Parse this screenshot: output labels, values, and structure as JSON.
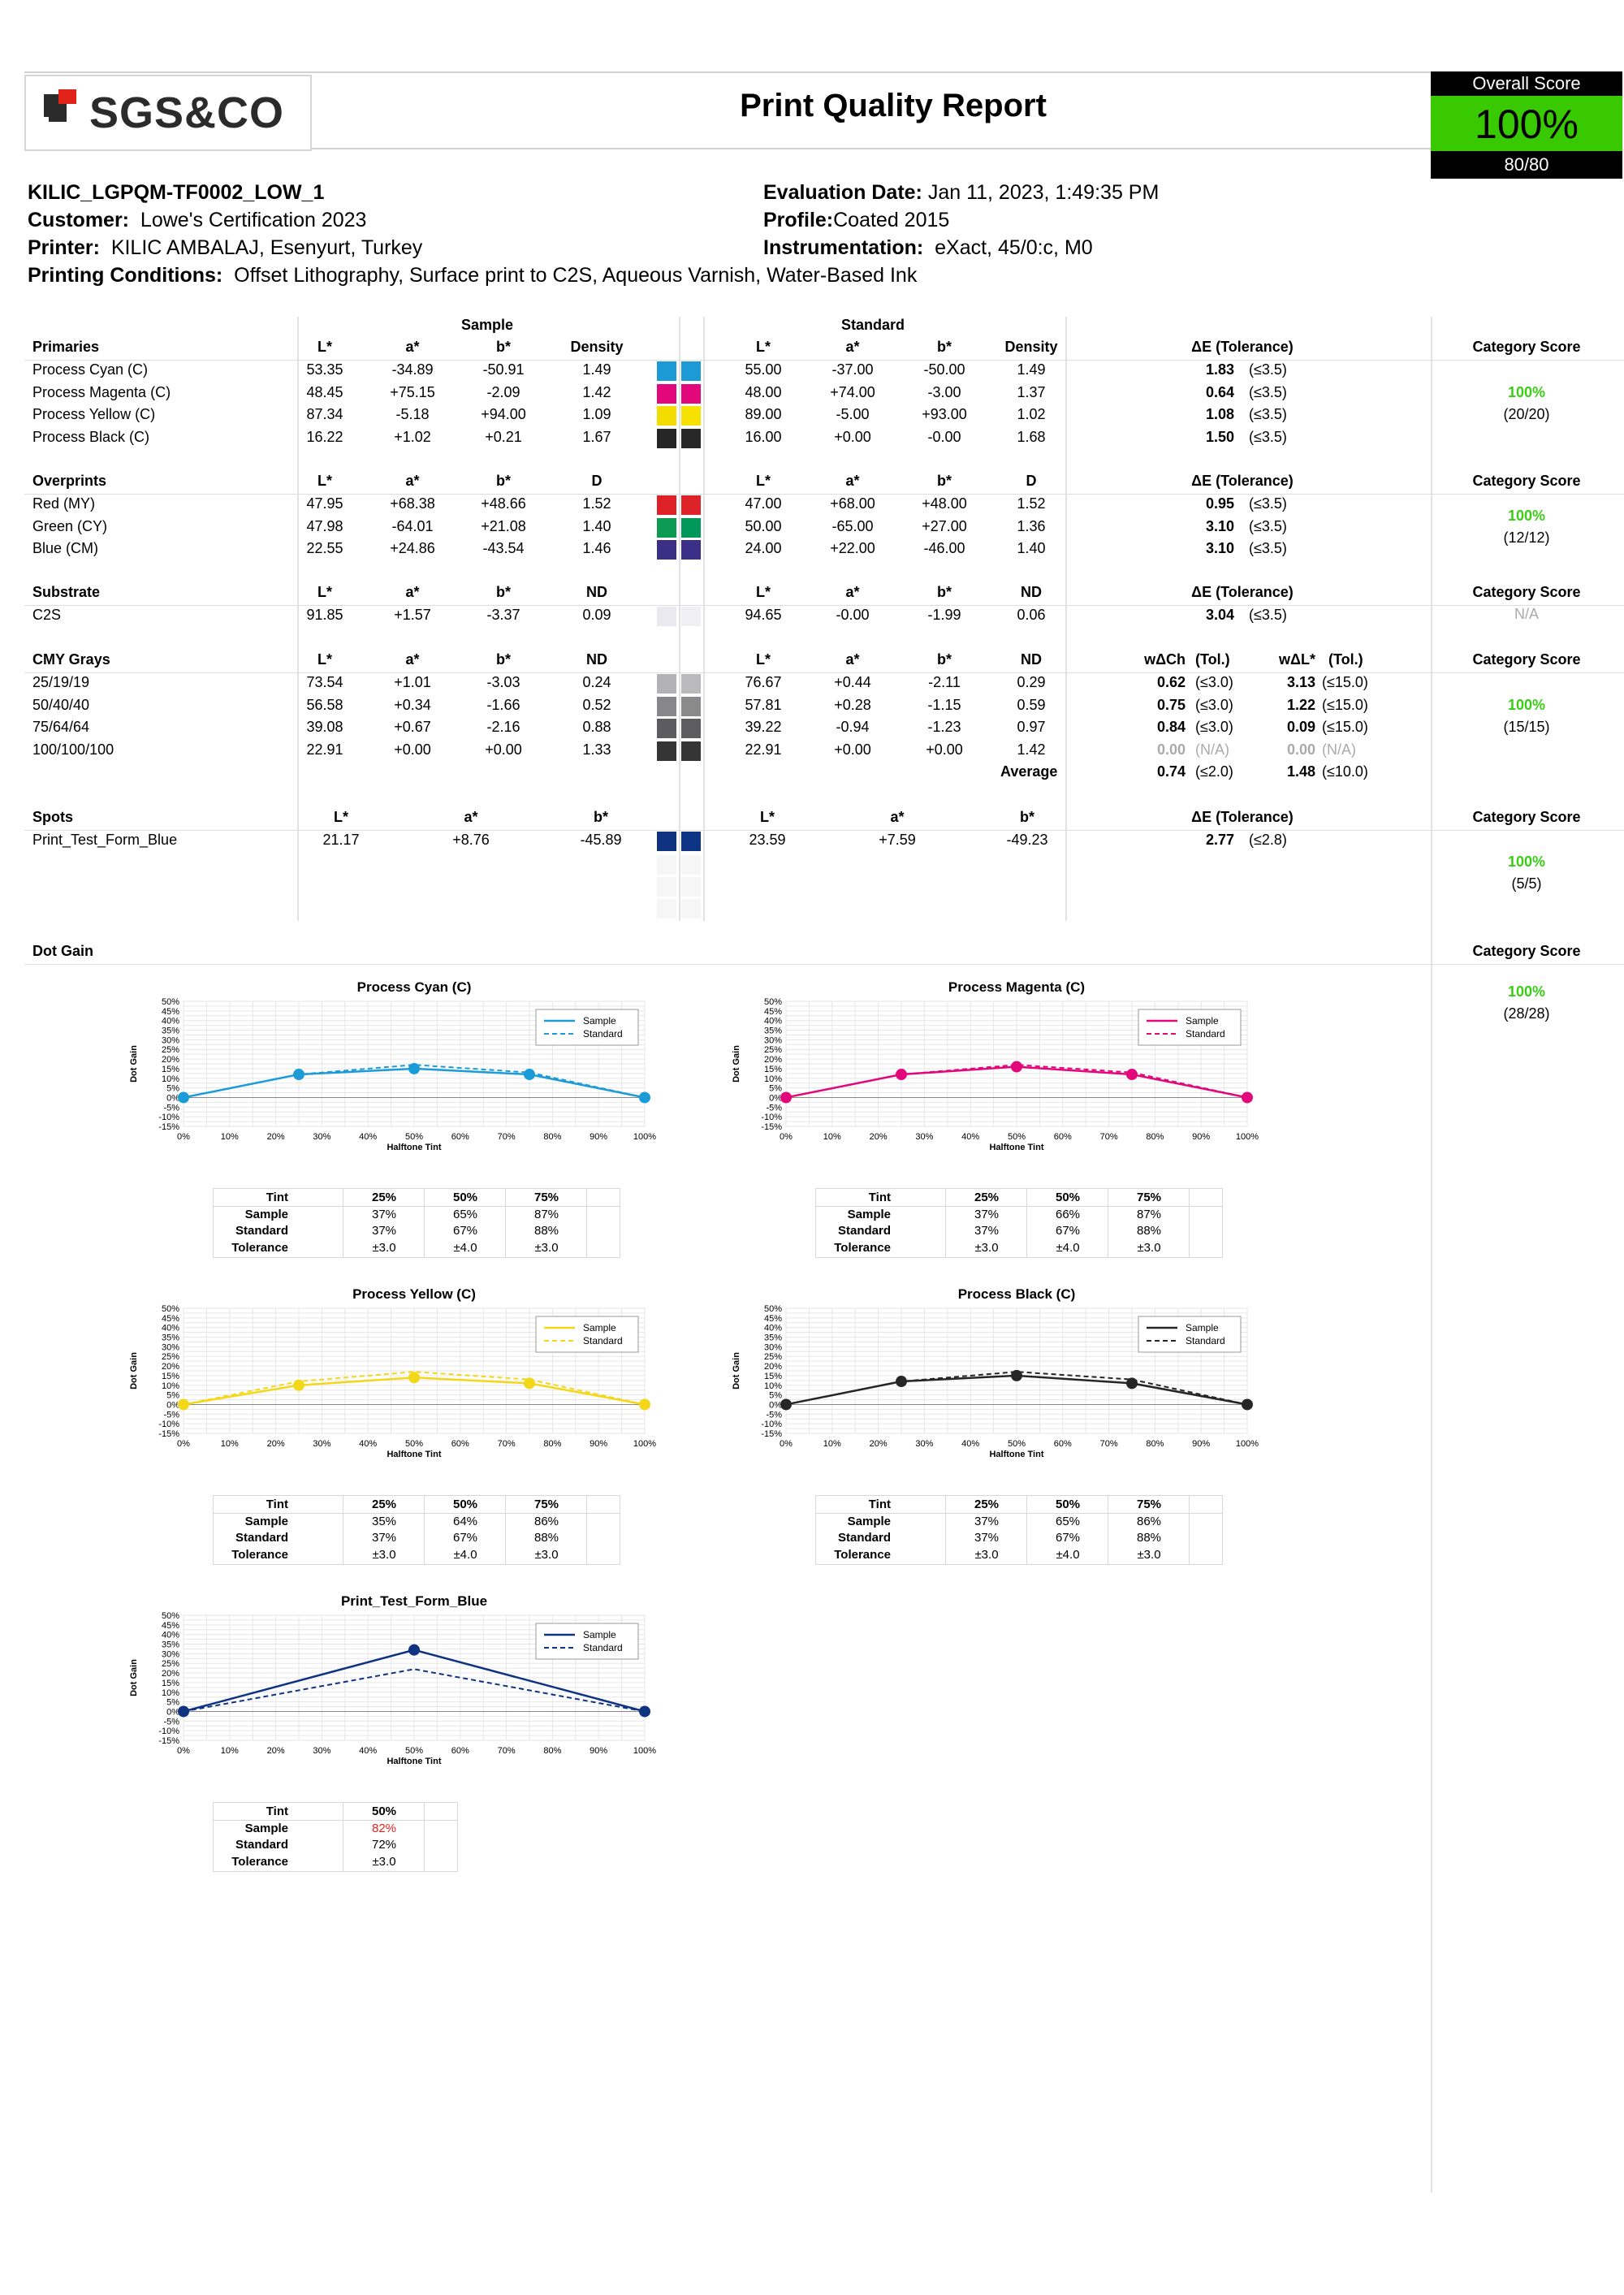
{
  "header": {
    "logo_text": "SGS&CO",
    "title": "Print Quality Report",
    "overall_score_label": "Overall Score",
    "overall_score_value": "100%",
    "overall_score_points": "80/80"
  },
  "job": {
    "name": "KILIC_LGPQM-TF0002_LOW_1",
    "customer_label": "Customer:",
    "customer": "Lowe's Certification 2023",
    "printer_label": "Printer:",
    "printer": "KILIC AMBALAJ, Esenyurt, Turkey",
    "conditions_label": "Printing Conditions:",
    "conditions": "Offset Lithography, Surface print to C2S, Aqueous Varnish, Water-Based Ink",
    "eval_label": "Evaluation Date:",
    "eval_date": "Jan 11, 2023, 1:49:35 PM",
    "profile_label": "Profile:",
    "profile": "Coated 2015",
    "instr_label": "Instrumentation:",
    "instrumentation": "eXact, 45/0:c, M0"
  },
  "labels": {
    "sample": "Sample",
    "standard": "Standard",
    "L": "L*",
    "a": "a*",
    "b": "b*",
    "density": "Density",
    "D": "D",
    "ND": "ND",
    "dE_tol": "ΔE (Tolerance)",
    "category_score": "Category Score",
    "wdCh": "wΔCh",
    "wdL": "wΔL*",
    "tol": "(Tol.)",
    "average": "Average",
    "dot_gain": "Dot Gain",
    "tint": "Tint",
    "tolerance": "Tolerance"
  },
  "primaries": {
    "title": "Primaries",
    "score": "100%",
    "points": "(20/20)",
    "rows": [
      {
        "name": "Process Cyan (C)",
        "sL": "53.35",
        "sa": "-34.89",
        "sb": "-50.91",
        "sd": "1.49",
        "tL": "55.00",
        "ta": "-37.00",
        "tb": "-50.00",
        "td": "1.49",
        "de": "1.83",
        "tol": "(≤3.5)",
        "c1": "#1c9ad6",
        "c2": "#1c9ad6"
      },
      {
        "name": "Process Magenta (C)",
        "sL": "48.45",
        "sa": "+75.15",
        "sb": "-2.09",
        "sd": "1.42",
        "tL": "48.00",
        "ta": "+74.00",
        "tb": "-3.00",
        "td": "1.37",
        "de": "0.64",
        "tol": "(≤3.5)",
        "c1": "#e2087c",
        "c2": "#e2087c"
      },
      {
        "name": "Process Yellow (C)",
        "sL": "87.34",
        "sa": "-5.18",
        "sb": "+94.00",
        "sd": "1.09",
        "tL": "89.00",
        "ta": "-5.00",
        "tb": "+93.00",
        "td": "1.02",
        "de": "1.08",
        "tol": "(≤3.5)",
        "c1": "#f5dc00",
        "c2": "#f7e100"
      },
      {
        "name": "Process Black (C)",
        "sL": "16.22",
        "sa": "+1.02",
        "sb": "+0.21",
        "sd": "1.67",
        "tL": "16.00",
        "ta": "+0.00",
        "tb": "-0.00",
        "td": "1.68",
        "de": "1.50",
        "tol": "(≤3.5)",
        "c1": "#262626",
        "c2": "#272727"
      }
    ]
  },
  "overprints": {
    "title": "Overprints",
    "score": "100%",
    "points": "(12/12)",
    "rows": [
      {
        "name": "Red (MY)",
        "sL": "47.95",
        "sa": "+68.38",
        "sb": "+48.66",
        "sd": "1.52",
        "tL": "47.00",
        "ta": "+68.00",
        "tb": "+48.00",
        "td": "1.52",
        "de": "0.95",
        "tol": "(≤3.5)",
        "c1": "#de2027",
        "c2": "#dd2228"
      },
      {
        "name": "Green (CY)",
        "sL": "47.98",
        "sa": "-64.01",
        "sb": "+21.08",
        "sd": "1.40",
        "tL": "50.00",
        "ta": "-65.00",
        "tb": "+27.00",
        "td": "1.36",
        "de": "3.10",
        "tol": "(≤3.5)",
        "c1": "#0d9a55",
        "c2": "#00985a"
      },
      {
        "name": "Blue (CM)",
        "sL": "22.55",
        "sa": "+24.86",
        "sb": "-43.54",
        "sd": "1.46",
        "tL": "24.00",
        "ta": "+22.00",
        "tb": "-46.00",
        "td": "1.40",
        "de": "3.10",
        "tol": "(≤3.5)",
        "c1": "#3a2f84",
        "c2": "#3c2f88"
      }
    ]
  },
  "substrate": {
    "title": "Substrate",
    "score": "N/A",
    "rows": [
      {
        "name": "C2S",
        "sL": "91.85",
        "sa": "+1.57",
        "sb": "-3.37",
        "sd": "0.09",
        "tL": "94.65",
        "ta": "-0.00",
        "tb": "-1.99",
        "td": "0.06",
        "de": "3.04",
        "tol": "(≤3.5)",
        "c1": "#e9e9ef",
        "c2": "#f0f0f4"
      }
    ]
  },
  "grays": {
    "title": "CMY Grays",
    "score": "100%",
    "points": "(15/15)",
    "rows": [
      {
        "name": "25/19/19",
        "sL": "73.54",
        "sa": "+1.01",
        "sb": "-3.03",
        "sd": "0.24",
        "tL": "76.67",
        "ta": "+0.44",
        "tb": "-2.11",
        "td": "0.29",
        "ch": "0.62",
        "cht": "(≤3.0)",
        "dl": "3.13",
        "dlt": "(≤15.0)",
        "c1": "#b3b3b7",
        "c2": "#bababd",
        "na": false
      },
      {
        "name": "50/40/40",
        "sL": "56.58",
        "sa": "+0.34",
        "sb": "-1.66",
        "sd": "0.52",
        "tL": "57.81",
        "ta": "+0.28",
        "tb": "-1.15",
        "td": "0.59",
        "ch": "0.75",
        "cht": "(≤3.0)",
        "dl": "1.22",
        "dlt": "(≤15.0)",
        "c1": "#878789",
        "c2": "#8a8a8b",
        "na": false
      },
      {
        "name": "75/64/64",
        "sL": "39.08",
        "sa": "+0.67",
        "sb": "-2.16",
        "sd": "0.88",
        "tL": "39.22",
        "ta": "-0.94",
        "tb": "-1.23",
        "td": "0.97",
        "ch": "0.84",
        "cht": "(≤3.0)",
        "dl": "0.09",
        "dlt": "(≤15.0)",
        "c1": "#5c5c60",
        "c2": "#5d5d60",
        "na": false
      },
      {
        "name": "100/100/100",
        "sL": "22.91",
        "sa": "+0.00",
        "sb": "+0.00",
        "sd": "1.33",
        "tL": "22.91",
        "ta": "+0.00",
        "tb": "+0.00",
        "td": "1.42",
        "ch": "0.00",
        "cht": "(N/A)",
        "dl": "0.00",
        "dlt": "(N/A)",
        "c1": "#353535",
        "c2": "#353535",
        "na": true
      }
    ],
    "avg_ch": "0.74",
    "avg_cht": "(≤2.0)",
    "avg_dl": "1.48",
    "avg_dlt": "(≤10.0)"
  },
  "spots": {
    "title": "Spots",
    "score": "100%",
    "points": "(5/5)",
    "rows": [
      {
        "name": "Print_Test_Form_Blue",
        "sL": "21.17",
        "sa": "+8.76",
        "sb": "-45.89",
        "tL": "23.59",
        "ta": "+7.59",
        "tb": "-49.23",
        "de": "2.77",
        "tol": "(≤2.8)",
        "c1": "#0f3381",
        "c2": "#0e3585"
      }
    ]
  },
  "dotgain": {
    "title": "Dot Gain",
    "score": "100%",
    "points": "(28/28)",
    "y_ticks": [
      "50%",
      "45%",
      "40%",
      "35%",
      "30%",
      "25%",
      "20%",
      "15%",
      "10%",
      "5%",
      "0%",
      "-5%",
      "-10%",
      "-15%"
    ],
    "x_ticks": [
      "0%",
      "10%",
      "20%",
      "30%",
      "40%",
      "50%",
      "60%",
      "70%",
      "80%",
      "90%",
      "100%"
    ],
    "ylabel": "Dot Gain",
    "xlabel": "Halftone Tint",
    "legend_sample": "Sample",
    "legend_standard": "Standard"
  },
  "chart_data": [
    {
      "type": "line",
      "title": "Process Cyan (C)",
      "xlabel": "Halftone Tint",
      "ylabel": "Dot Gain",
      "xlim": [
        0,
        100
      ],
      "ylim": [
        -15,
        50
      ],
      "color": "#1b9bd7",
      "legend": "top-right",
      "series": [
        {
          "name": "Sample",
          "x": [
            0,
            25,
            50,
            75,
            100
          ],
          "y": [
            0,
            12,
            15,
            12,
            0
          ]
        },
        {
          "name": "Standard",
          "x": [
            0,
            25,
            50,
            75,
            100
          ],
          "y": [
            0,
            12,
            17,
            13,
            0
          ]
        }
      ],
      "table": {
        "tints": [
          "25%",
          "50%",
          "75%"
        ],
        "sample": [
          "37%",
          "65%",
          "87%"
        ],
        "standard": [
          "37%",
          "67%",
          "88%"
        ],
        "tolerance": [
          "±3.0",
          "±4.0",
          "±3.0"
        ],
        "sample_red": [
          false,
          false,
          false
        ]
      }
    },
    {
      "type": "line",
      "title": "Process Magenta (C)",
      "xlabel": "Halftone Tint",
      "ylabel": "Dot Gain",
      "xlim": [
        0,
        100
      ],
      "ylim": [
        -15,
        50
      ],
      "color": "#e2087c",
      "legend": "top-right",
      "series": [
        {
          "name": "Sample",
          "x": [
            0,
            25,
            50,
            75,
            100
          ],
          "y": [
            0,
            12,
            16,
            12,
            0
          ]
        },
        {
          "name": "Standard",
          "x": [
            0,
            25,
            50,
            75,
            100
          ],
          "y": [
            0,
            12,
            17,
            13,
            0
          ]
        }
      ],
      "table": {
        "tints": [
          "25%",
          "50%",
          "75%"
        ],
        "sample": [
          "37%",
          "66%",
          "87%"
        ],
        "standard": [
          "37%",
          "67%",
          "88%"
        ],
        "tolerance": [
          "±3.0",
          "±4.0",
          "±3.0"
        ],
        "sample_red": [
          false,
          false,
          false
        ]
      }
    },
    {
      "type": "line",
      "title": "Process Yellow (C)",
      "xlabel": "Halftone Tint",
      "ylabel": "Dot Gain",
      "xlim": [
        0,
        100
      ],
      "ylim": [
        -15,
        50
      ],
      "color": "#f3d81a",
      "legend": "top-right",
      "series": [
        {
          "name": "Sample",
          "x": [
            0,
            25,
            50,
            75,
            100
          ],
          "y": [
            0,
            10,
            14,
            11,
            0
          ]
        },
        {
          "name": "Standard",
          "x": [
            0,
            25,
            50,
            75,
            100
          ],
          "y": [
            0,
            12,
            17,
            13,
            0
          ]
        }
      ],
      "table": {
        "tints": [
          "25%",
          "50%",
          "75%"
        ],
        "sample": [
          "35%",
          "64%",
          "86%"
        ],
        "standard": [
          "37%",
          "67%",
          "88%"
        ],
        "tolerance": [
          "±3.0",
          "±4.0",
          "±3.0"
        ],
        "sample_red": [
          false,
          false,
          false
        ]
      }
    },
    {
      "type": "line",
      "title": "Process Black (C)",
      "xlabel": "Halftone Tint",
      "ylabel": "Dot Gain",
      "xlim": [
        0,
        100
      ],
      "ylim": [
        -15,
        50
      ],
      "color": "#262626",
      "legend": "top-right",
      "series": [
        {
          "name": "Sample",
          "x": [
            0,
            25,
            50,
            75,
            100
          ],
          "y": [
            0,
            12,
            15,
            11,
            0
          ]
        },
        {
          "name": "Standard",
          "x": [
            0,
            25,
            50,
            75,
            100
          ],
          "y": [
            0,
            12,
            17,
            13,
            0
          ]
        }
      ],
      "table": {
        "tints": [
          "25%",
          "50%",
          "75%"
        ],
        "sample": [
          "37%",
          "65%",
          "86%"
        ],
        "standard": [
          "37%",
          "67%",
          "88%"
        ],
        "tolerance": [
          "±3.0",
          "±4.0",
          "±3.0"
        ],
        "sample_red": [
          false,
          false,
          false
        ]
      }
    },
    {
      "type": "line",
      "title": "Print_Test_Form_Blue",
      "xlabel": "Halftone Tint",
      "ylabel": "Dot Gain",
      "xlim": [
        0,
        100
      ],
      "ylim": [
        -15,
        50
      ],
      "color": "#0f3381",
      "legend": "top-right",
      "series": [
        {
          "name": "Sample",
          "x": [
            0,
            50,
            100
          ],
          "y": [
            0,
            32,
            0
          ]
        },
        {
          "name": "Standard",
          "x": [
            0,
            50,
            100
          ],
          "y": [
            0,
            22,
            0
          ]
        }
      ],
      "table": {
        "tints": [
          "50%"
        ],
        "sample": [
          "82%"
        ],
        "standard": [
          "72%"
        ],
        "tolerance": [
          "±3.0"
        ],
        "sample_red": [
          true
        ]
      }
    }
  ]
}
